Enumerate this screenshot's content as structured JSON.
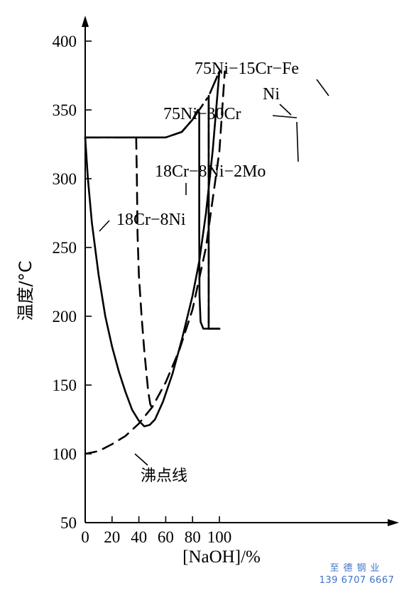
{
  "chart_data": {
    "type": "line",
    "xlabel": "[NaOH]/%",
    "ylabel": "温度/°C",
    "xlim": [
      0,
      115
    ],
    "ylim": [
      50,
      410
    ],
    "xticks": [
      0,
      20,
      40,
      60,
      80,
      100
    ],
    "yticks": [
      50,
      100,
      150,
      200,
      250,
      300,
      350,
      400
    ],
    "grid": false,
    "legend": "none",
    "series": [
      {
        "name": "18Cr−8Ni",
        "style": "solid",
        "points": [
          [
            0,
            330
          ],
          [
            2,
            300
          ],
          [
            5,
            268
          ],
          [
            10,
            230
          ],
          [
            15,
            200
          ],
          [
            20,
            178
          ],
          [
            25,
            160
          ],
          [
            30,
            145
          ],
          [
            35,
            132
          ],
          [
            40,
            124
          ],
          [
            44,
            120
          ],
          [
            48,
            121
          ],
          [
            52,
            125
          ],
          [
            58,
            138
          ],
          [
            65,
            158
          ],
          [
            72,
            183
          ],
          [
            80,
            215
          ],
          [
            85,
            240
          ],
          [
            90,
            275
          ],
          [
            95,
            320
          ],
          [
            100,
            378
          ]
        ]
      },
      {
        "name": "18Cr−8Ni−2Mo",
        "style": "dashed",
        "points": [
          [
            38,
            330
          ],
          [
            38.5,
            300
          ],
          [
            39,
            260
          ],
          [
            40,
            230
          ],
          [
            42,
            200
          ],
          [
            44,
            175
          ],
          [
            45.5,
            160
          ],
          [
            47,
            145
          ],
          [
            48.5,
            136
          ],
          [
            50,
            133
          ],
          [
            52,
            132
          ]
        ]
      },
      {
        "name": "75Ni−30Cr",
        "style": "solid",
        "points": [
          [
            0,
            330
          ],
          [
            40,
            330
          ],
          [
            60,
            330
          ],
          [
            72,
            334
          ],
          [
            80,
            343
          ],
          [
            84,
            350
          ],
          [
            85,
            348
          ],
          [
            85,
            260
          ],
          [
            85.2,
            215
          ],
          [
            86,
            196
          ],
          [
            88,
            191
          ],
          [
            100,
            191
          ]
        ]
      },
      {
        "name": "75Ni−15Cr−Fe",
        "style": "dash-dot",
        "points": [
          [
            0,
            330
          ],
          [
            40,
            330
          ],
          [
            60,
            330
          ],
          [
            72,
            334
          ],
          [
            80,
            343
          ],
          [
            85,
            350
          ],
          [
            92,
            360
          ],
          [
            100,
            378
          ],
          [
            92,
            360
          ],
          [
            92,
            250
          ],
          [
            92,
            191
          ],
          [
            100,
            191
          ]
        ]
      },
      {
        "name": "Ni",
        "style": "solid",
        "points": [
          [
            92,
            360
          ],
          [
            92,
            191
          ],
          [
            100,
            191
          ]
        ]
      },
      {
        "name": "沸点线",
        "style": "dashed",
        "points": [
          [
            0,
            100
          ],
          [
            10,
            102
          ],
          [
            20,
            107
          ],
          [
            30,
            113
          ],
          [
            40,
            122
          ],
          [
            50,
            134
          ],
          [
            60,
            152
          ],
          [
            70,
            175
          ],
          [
            80,
            205
          ],
          [
            90,
            250
          ],
          [
            100,
            320
          ],
          [
            104,
            378
          ]
        ]
      }
    ]
  },
  "labels": {
    "alloy_1": "75Ni−15Cr−Fe",
    "alloy_2": "Ni",
    "alloy_3": "75Ni−30Cr",
    "alloy_4": "18Cr−8Ni−2Mo",
    "alloy_5": "18Cr−8Ni",
    "boiling_line": "沸点线"
  },
  "watermark": {
    "line1": "至德钢业",
    "line2": "139 6707 6667"
  },
  "colors": {
    "ink": "#000000",
    "watermark": "#3f73c8"
  }
}
